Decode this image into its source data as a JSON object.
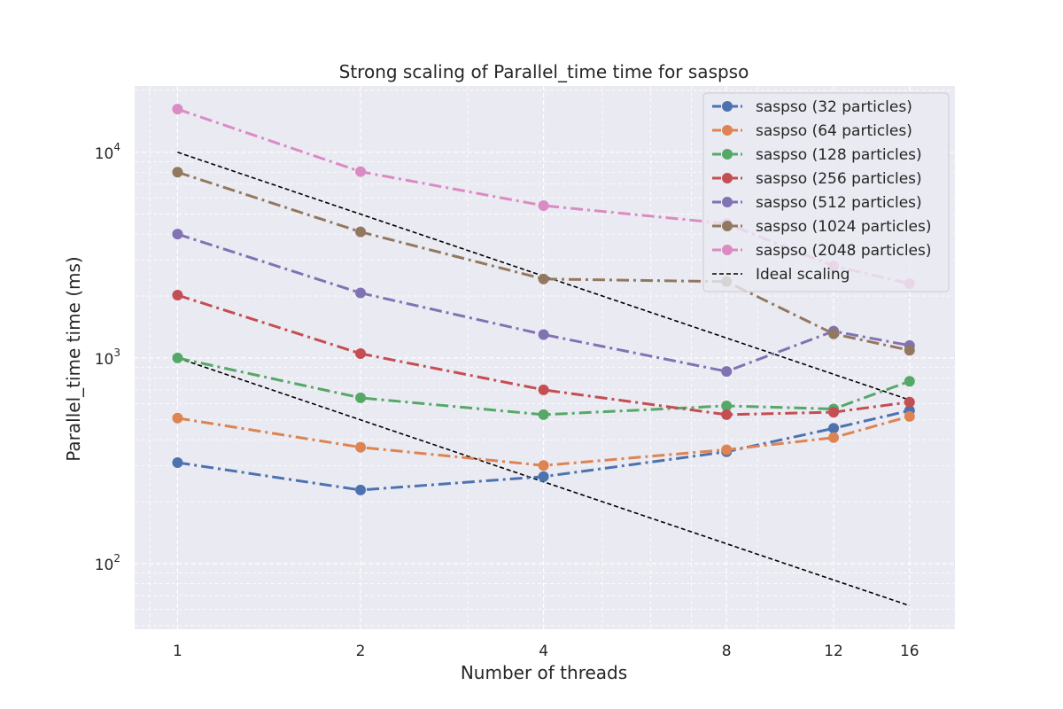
{
  "chart_data": {
    "type": "line",
    "title": "Strong scaling of Parallel_time time for saspso",
    "xlabel": "Number of threads",
    "ylabel": "Parallel_time time (ms)",
    "xscale": "log",
    "yscale": "log",
    "x": [
      1,
      2,
      4,
      8,
      12,
      16
    ],
    "x_tick_labels": [
      "1",
      "2",
      "4",
      "8",
      "12",
      "16"
    ],
    "xlim": [
      0.85,
      19.0
    ],
    "ylim": [
      48,
      21000
    ],
    "y_ticks": [
      {
        "base": "10",
        "exp": "2",
        "value": 100
      },
      {
        "base": "10",
        "exp": "3",
        "value": 1000
      },
      {
        "base": "10",
        "exp": "4",
        "value": 10000
      }
    ],
    "grid": true,
    "legend_position": "top-right",
    "series": [
      {
        "name": "saspso (32 particles)",
        "color": "#4c72b0",
        "values": [
          310,
          228,
          265,
          350,
          455,
          555
        ]
      },
      {
        "name": "saspso (64 particles)",
        "color": "#dd8452",
        "values": [
          510,
          368,
          300,
          358,
          410,
          520
        ]
      },
      {
        "name": "saspso (128 particles)",
        "color": "#55a868",
        "values": [
          1000,
          640,
          530,
          585,
          565,
          770
        ]
      },
      {
        "name": "saspso (256 particles)",
        "color": "#c44e52",
        "values": [
          2020,
          1050,
          700,
          530,
          545,
          610
        ]
      },
      {
        "name": "saspso (512 particles)",
        "color": "#8172b3",
        "values": [
          4000,
          2070,
          1300,
          860,
          1350,
          1150
        ]
      },
      {
        "name": "saspso (1024 particles)",
        "color": "#937860",
        "values": [
          8000,
          4100,
          2420,
          2350,
          1310,
          1090
        ]
      },
      {
        "name": "saspso (2048 particles)",
        "color": "#da8bc3",
        "values": [
          16200,
          8050,
          5500,
          4500,
          2800,
          2300
        ]
      }
    ],
    "ideal_scaling": {
      "name": "Ideal scaling",
      "color": "#000000",
      "lines": [
        [
          10000,
          5000,
          2500,
          1250,
          833.3,
          625
        ],
        [
          1000,
          500,
          250,
          125,
          83.3,
          62.5
        ]
      ]
    }
  }
}
